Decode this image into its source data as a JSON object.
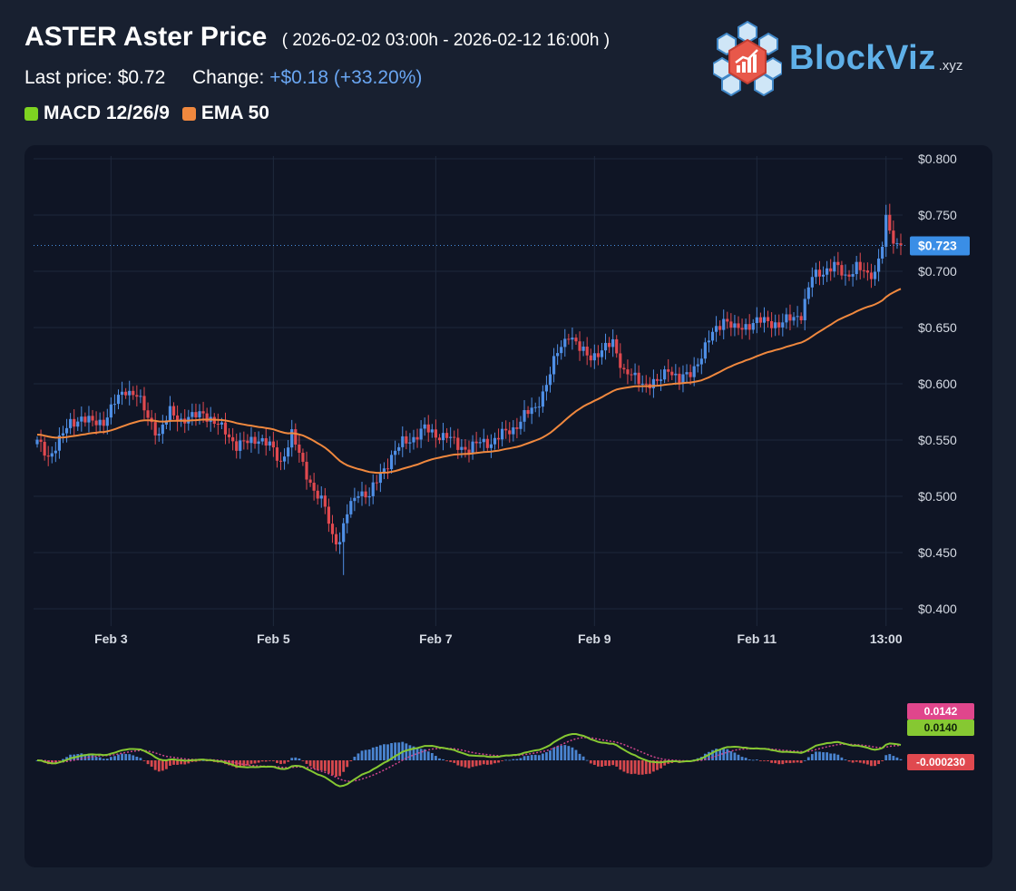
{
  "header": {
    "title": "ASTER Aster Price",
    "range": "( 2026-02-02 03:00h - 2026-02-12 16:00h )",
    "last_price_label": "Last price:",
    "last_price": "$0.72",
    "change_label": "Change:",
    "change_value": "+$0.18 (+33.20%)"
  },
  "legend": [
    {
      "label": "MACD 12/26/9",
      "color": "#7ed321"
    },
    {
      "label": "EMA 50",
      "color": "#f0883e"
    }
  ],
  "logo": {
    "name": "BlockViz",
    "suffix": ".xyz",
    "icon": "blocks-chart-logo-icon"
  },
  "colors": {
    "up": "#4f8fe6",
    "down": "#e0494f",
    "ema": "#f0883e",
    "macd": "#86c832",
    "signal": "#d0458c",
    "hist_pos": "#4a84d0",
    "hist_neg": "#d6484d",
    "grid": "#1e283c",
    "axis_text": "#d6dbe4",
    "last_price_tag": "#3a8ee6"
  },
  "chart_data": [
    {
      "type": "candlestick",
      "title": "ASTER Aster Price",
      "x_ticks": [
        "Feb 3",
        "Feb 5",
        "Feb 7",
        "Feb 9",
        "Feb 11",
        "13:00"
      ],
      "y_ticks": [
        "$0.400",
        "$0.450",
        "$0.500",
        "$0.550",
        "$0.600",
        "$0.650",
        "$0.700",
        "$0.750",
        "$0.800"
      ],
      "ylim": [
        0.4,
        0.8
      ],
      "grid": true,
      "last_price_line": 0.723,
      "last_price_label": "$0.723",
      "close_anchors": [
        [
          0,
          0.548
        ],
        [
          3,
          0.535
        ],
        [
          6,
          0.55
        ],
        [
          9,
          0.565
        ],
        [
          12,
          0.57
        ],
        [
          15,
          0.565
        ],
        [
          18,
          0.567
        ],
        [
          21,
          0.583
        ],
        [
          24,
          0.595
        ],
        [
          27,
          0.59
        ],
        [
          30,
          0.57
        ],
        [
          33,
          0.555
        ],
        [
          36,
          0.575
        ],
        [
          39,
          0.568
        ],
        [
          42,
          0.57
        ],
        [
          45,
          0.575
        ],
        [
          48,
          0.565
        ],
        [
          51,
          0.558
        ],
        [
          54,
          0.545
        ],
        [
          57,
          0.548
        ],
        [
          60,
          0.552
        ],
        [
          63,
          0.545
        ],
        [
          66,
          0.53
        ],
        [
          69,
          0.555
        ],
        [
          72,
          0.528
        ],
        [
          75,
          0.505
        ],
        [
          78,
          0.49
        ],
        [
          80,
          0.465
        ],
        [
          82,
          0.46
        ],
        [
          84,
          0.485
        ],
        [
          87,
          0.505
        ],
        [
          90,
          0.5
        ],
        [
          93,
          0.52
        ],
        [
          96,
          0.535
        ],
        [
          99,
          0.548
        ],
        [
          102,
          0.552
        ],
        [
          105,
          0.56
        ],
        [
          108,
          0.555
        ],
        [
          111,
          0.553
        ],
        [
          114,
          0.545
        ],
        [
          117,
          0.542
        ],
        [
          120,
          0.548
        ],
        [
          123,
          0.548
        ],
        [
          126,
          0.555
        ],
        [
          129,
          0.56
        ],
        [
          132,
          0.572
        ],
        [
          135,
          0.578
        ],
        [
          138,
          0.6
        ],
        [
          141,
          0.628
        ],
        [
          144,
          0.645
        ],
        [
          147,
          0.63
        ],
        [
          150,
          0.625
        ],
        [
          153,
          0.628
        ],
        [
          156,
          0.638
        ],
        [
          159,
          0.61
        ],
        [
          162,
          0.605
        ],
        [
          165,
          0.6
        ],
        [
          168,
          0.6
        ],
        [
          171,
          0.615
        ],
        [
          174,
          0.602
        ],
        [
          177,
          0.61
        ],
        [
          180,
          0.625
        ],
        [
          183,
          0.645
        ],
        [
          186,
          0.658
        ],
        [
          189,
          0.648
        ],
        [
          192,
          0.652
        ],
        [
          195,
          0.655
        ],
        [
          198,
          0.656
        ],
        [
          201,
          0.652
        ],
        [
          204,
          0.658
        ],
        [
          207,
          0.662
        ],
        [
          210,
          0.695
        ],
        [
          213,
          0.7
        ],
        [
          216,
          0.705
        ],
        [
          219,
          0.695
        ],
        [
          222,
          0.705
        ],
        [
          225,
          0.695
        ],
        [
          227,
          0.7
        ],
        [
          229,
          0.725
        ],
        [
          230,
          0.745
        ],
        [
          231,
          0.735
        ],
        [
          232,
          0.725
        ],
        [
          234,
          0.72
        ]
      ],
      "candle_count": 235
    },
    {
      "type": "line",
      "title": "MACD 12/26/9",
      "value_tags": [
        "0.0142",
        "0.0140",
        "-0.000230"
      ],
      "series": [
        {
          "name": "MACD 12/26/9",
          "values_source": "derived from price series"
        }
      ]
    }
  ]
}
